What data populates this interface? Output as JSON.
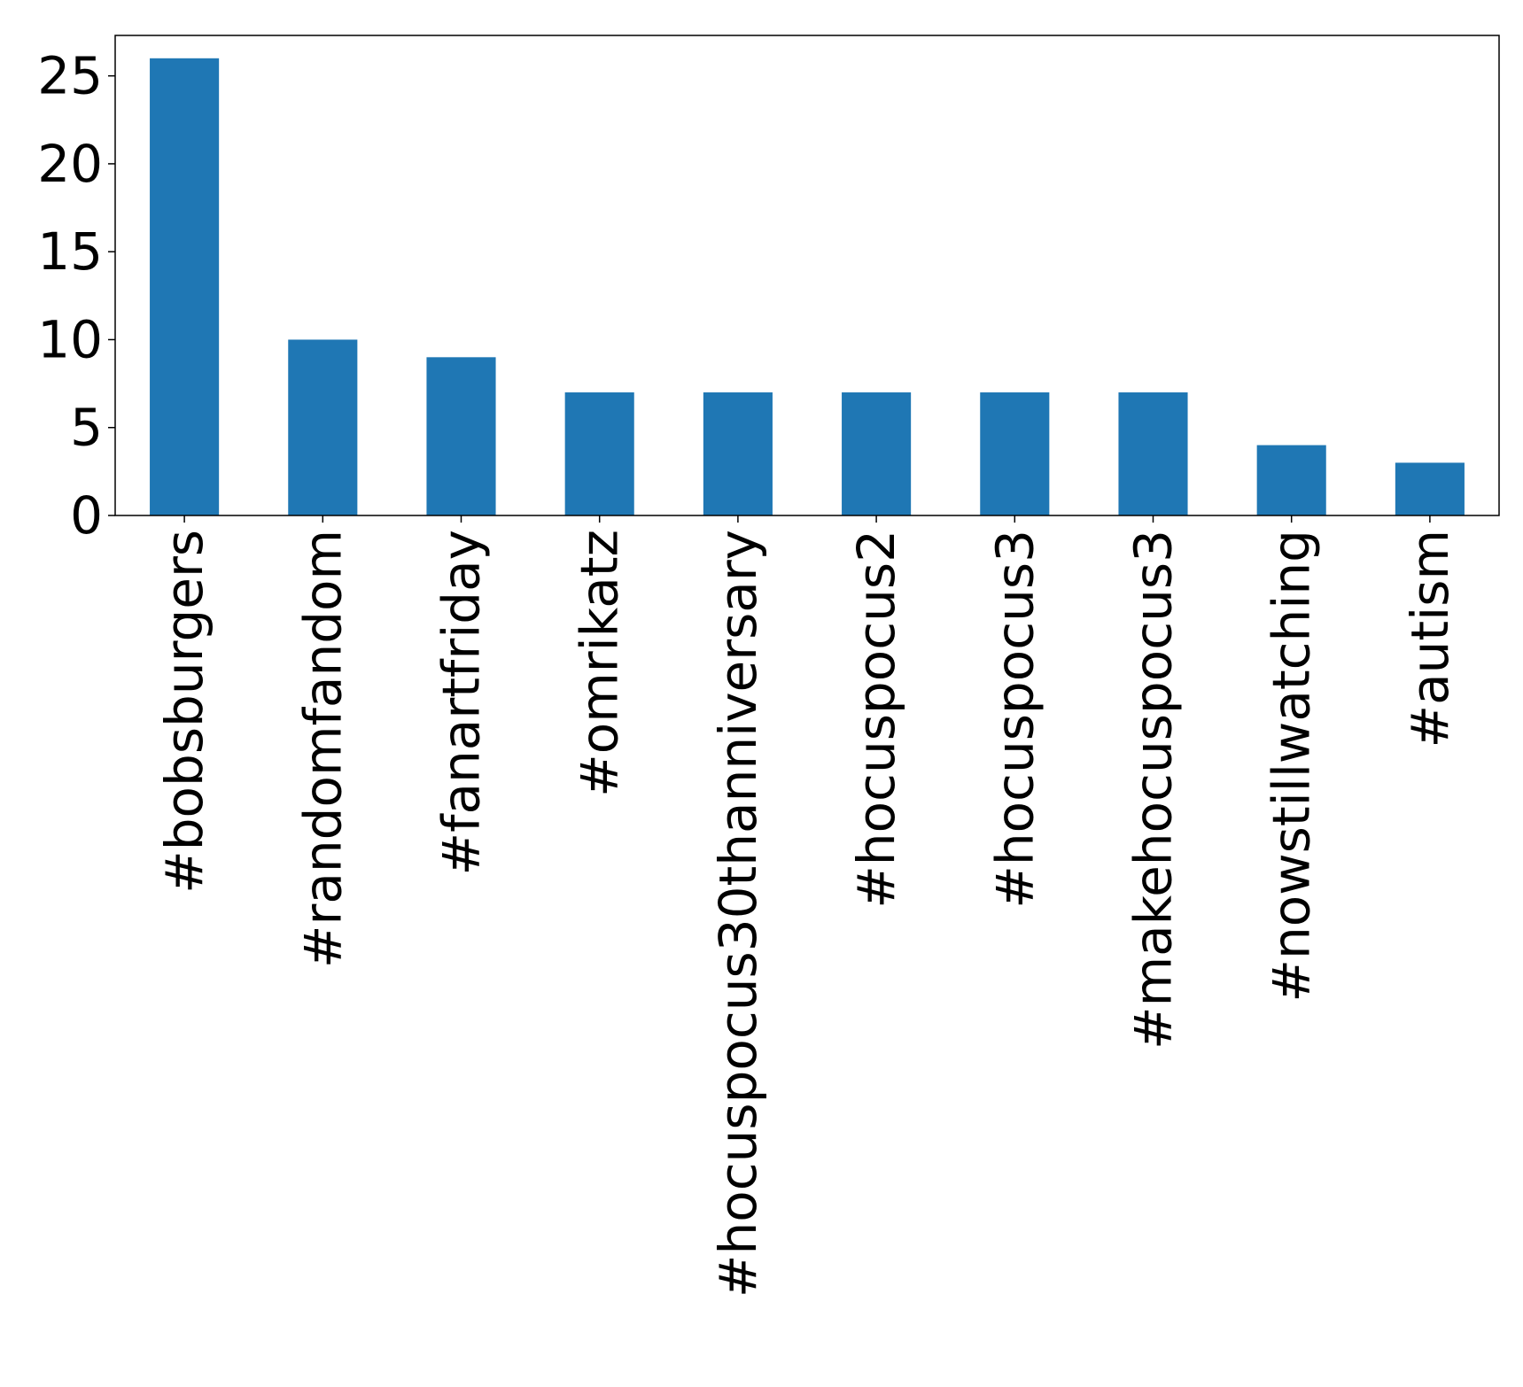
{
  "chart_data": {
    "type": "bar",
    "title": "",
    "xlabel": "",
    "ylabel": "",
    "categories": [
      "#bobsburgers",
      "#randomfandom",
      "#fanartfriday",
      "#omrikatz",
      "#hocuspocus30thanniversary",
      "#hocuspocus2",
      "#hocuspocus3",
      "#makehocuspocus3",
      "#nowstillwatching",
      "#autism"
    ],
    "values": [
      26,
      10,
      9,
      7,
      7,
      7,
      7,
      7,
      4,
      3
    ],
    "ylim": [
      0,
      27.3
    ],
    "yticks": [
      0,
      5,
      10,
      15,
      20,
      25
    ],
    "grid": false,
    "legend": "none",
    "bar_color": "#1f77b4"
  }
}
